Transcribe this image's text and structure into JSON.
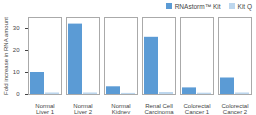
{
  "chart_data": {
    "type": "bar",
    "categories": [
      "Normal\nLiver 1",
      "Normal\nLiver 2",
      "Normal\nKidney",
      "Renal Cell\nCarcinoma",
      "Colorectal\nCancer 1",
      "Colorectal\nCancer 2"
    ],
    "series": [
      {
        "name": "RNAstorm™ Kit",
        "color": "#5b9bd5",
        "values": [
          10,
          32,
          3.5,
          26,
          3,
          7.5
        ]
      },
      {
        "name": "Kit Q",
        "color": "#bdd7ee",
        "values": [
          0.7,
          0.7,
          0.5,
          0.9,
          0.6,
          0.7
        ]
      }
    ],
    "ylabel": "Fold increase in RNA amount",
    "ylim": [
      0,
      35
    ],
    "yticks": [
      0,
      10,
      20,
      30
    ],
    "grid": false,
    "legend": "upper right"
  }
}
